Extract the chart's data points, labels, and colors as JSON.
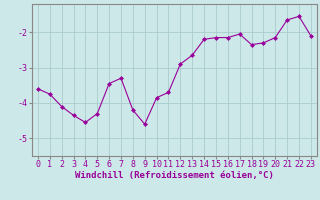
{
  "x": [
    0,
    1,
    2,
    3,
    4,
    5,
    6,
    7,
    8,
    9,
    10,
    11,
    12,
    13,
    14,
    15,
    16,
    17,
    18,
    19,
    20,
    21,
    22,
    23
  ],
  "y": [
    -3.6,
    -3.75,
    -4.1,
    -4.35,
    -4.55,
    -4.3,
    -3.45,
    -3.3,
    -4.2,
    -4.6,
    -3.85,
    -3.7,
    -2.9,
    -2.65,
    -2.2,
    -2.15,
    -2.15,
    -2.05,
    -2.35,
    -2.3,
    -2.15,
    -1.65,
    -1.55,
    -2.1
  ],
  "line_color": "#990099",
  "marker": "D",
  "markersize": 2,
  "linewidth": 0.8,
  "xlabel": "Windchill (Refroidissement éolien,°C)",
  "xlabel_fontsize": 6.5,
  "xlim": [
    -0.5,
    23.5
  ],
  "ylim": [
    -5.5,
    -1.2
  ],
  "yticks": [
    -5,
    -4,
    -3,
    -2
  ],
  "xticks": [
    0,
    1,
    2,
    3,
    4,
    5,
    6,
    7,
    8,
    9,
    10,
    11,
    12,
    13,
    14,
    15,
    16,
    17,
    18,
    19,
    20,
    21,
    22,
    23
  ],
  "bg_color": "#cce8e8",
  "grid_color": "#aacccc",
  "tick_fontsize": 6,
  "spine_color": "#888888"
}
